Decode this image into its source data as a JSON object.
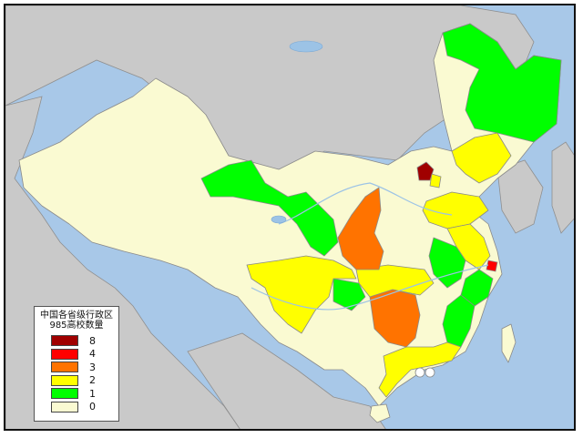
{
  "legend": {
    "title_line1": "中国各省级行政区",
    "title_line2": "985高校数量",
    "items": [
      {
        "label": "8",
        "color": "#a00000"
      },
      {
        "label": "4",
        "color": "#ff0000"
      },
      {
        "label": "3",
        "color": "#ff7300"
      },
      {
        "label": "2",
        "color": "#ffff00"
      },
      {
        "label": "1",
        "color": "#00ff00"
      },
      {
        "label": "0",
        "color": "#fafad2"
      }
    ]
  },
  "colors": {
    "sea": "#a8c8e8",
    "neighbor": "#c9c9c9",
    "border": "#8a8a8a"
  }
}
